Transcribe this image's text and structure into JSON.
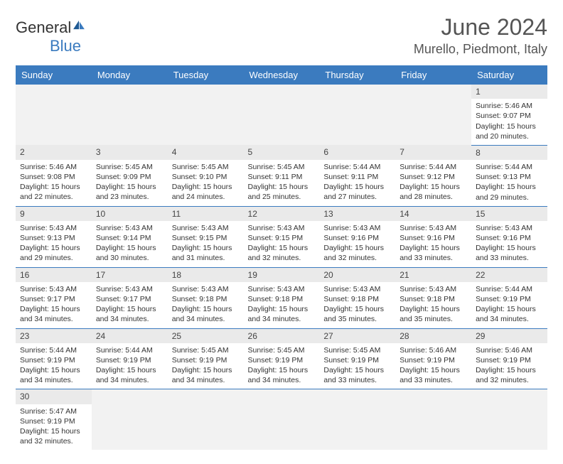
{
  "logo": {
    "text1": "General",
    "text2": "Blue"
  },
  "header": {
    "month_title": "June 2024",
    "location": "Murello, Piedmont, Italy"
  },
  "colors": {
    "header_bg": "#3b7bbf",
    "header_text": "#ffffff",
    "daynum_bg": "#eaeaea",
    "blank_bg": "#f2f2f2",
    "border": "#3b7bbf",
    "text": "#333333",
    "title_color": "#555555"
  },
  "day_names": [
    "Sunday",
    "Monday",
    "Tuesday",
    "Wednesday",
    "Thursday",
    "Friday",
    "Saturday"
  ],
  "weeks": [
    [
      null,
      null,
      null,
      null,
      null,
      null,
      {
        "n": "1",
        "sr": "5:46 AM",
        "ss": "9:07 PM",
        "dl": "15 hours and 20 minutes."
      }
    ],
    [
      {
        "n": "2",
        "sr": "5:46 AM",
        "ss": "9:08 PM",
        "dl": "15 hours and 22 minutes."
      },
      {
        "n": "3",
        "sr": "5:45 AM",
        "ss": "9:09 PM",
        "dl": "15 hours and 23 minutes."
      },
      {
        "n": "4",
        "sr": "5:45 AM",
        "ss": "9:10 PM",
        "dl": "15 hours and 24 minutes."
      },
      {
        "n": "5",
        "sr": "5:45 AM",
        "ss": "9:11 PM",
        "dl": "15 hours and 25 minutes."
      },
      {
        "n": "6",
        "sr": "5:44 AM",
        "ss": "9:11 PM",
        "dl": "15 hours and 27 minutes."
      },
      {
        "n": "7",
        "sr": "5:44 AM",
        "ss": "9:12 PM",
        "dl": "15 hours and 28 minutes."
      },
      {
        "n": "8",
        "sr": "5:44 AM",
        "ss": "9:13 PM",
        "dl": "15 hours and 29 minutes."
      }
    ],
    [
      {
        "n": "9",
        "sr": "5:43 AM",
        "ss": "9:13 PM",
        "dl": "15 hours and 29 minutes."
      },
      {
        "n": "10",
        "sr": "5:43 AM",
        "ss": "9:14 PM",
        "dl": "15 hours and 30 minutes."
      },
      {
        "n": "11",
        "sr": "5:43 AM",
        "ss": "9:15 PM",
        "dl": "15 hours and 31 minutes."
      },
      {
        "n": "12",
        "sr": "5:43 AM",
        "ss": "9:15 PM",
        "dl": "15 hours and 32 minutes."
      },
      {
        "n": "13",
        "sr": "5:43 AM",
        "ss": "9:16 PM",
        "dl": "15 hours and 32 minutes."
      },
      {
        "n": "14",
        "sr": "5:43 AM",
        "ss": "9:16 PM",
        "dl": "15 hours and 33 minutes."
      },
      {
        "n": "15",
        "sr": "5:43 AM",
        "ss": "9:16 PM",
        "dl": "15 hours and 33 minutes."
      }
    ],
    [
      {
        "n": "16",
        "sr": "5:43 AM",
        "ss": "9:17 PM",
        "dl": "15 hours and 34 minutes."
      },
      {
        "n": "17",
        "sr": "5:43 AM",
        "ss": "9:17 PM",
        "dl": "15 hours and 34 minutes."
      },
      {
        "n": "18",
        "sr": "5:43 AM",
        "ss": "9:18 PM",
        "dl": "15 hours and 34 minutes."
      },
      {
        "n": "19",
        "sr": "5:43 AM",
        "ss": "9:18 PM",
        "dl": "15 hours and 34 minutes."
      },
      {
        "n": "20",
        "sr": "5:43 AM",
        "ss": "9:18 PM",
        "dl": "15 hours and 35 minutes."
      },
      {
        "n": "21",
        "sr": "5:43 AM",
        "ss": "9:18 PM",
        "dl": "15 hours and 35 minutes."
      },
      {
        "n": "22",
        "sr": "5:44 AM",
        "ss": "9:19 PM",
        "dl": "15 hours and 34 minutes."
      }
    ],
    [
      {
        "n": "23",
        "sr": "5:44 AM",
        "ss": "9:19 PM",
        "dl": "15 hours and 34 minutes."
      },
      {
        "n": "24",
        "sr": "5:44 AM",
        "ss": "9:19 PM",
        "dl": "15 hours and 34 minutes."
      },
      {
        "n": "25",
        "sr": "5:45 AM",
        "ss": "9:19 PM",
        "dl": "15 hours and 34 minutes."
      },
      {
        "n": "26",
        "sr": "5:45 AM",
        "ss": "9:19 PM",
        "dl": "15 hours and 34 minutes."
      },
      {
        "n": "27",
        "sr": "5:45 AM",
        "ss": "9:19 PM",
        "dl": "15 hours and 33 minutes."
      },
      {
        "n": "28",
        "sr": "5:46 AM",
        "ss": "9:19 PM",
        "dl": "15 hours and 33 minutes."
      },
      {
        "n": "29",
        "sr": "5:46 AM",
        "ss": "9:19 PM",
        "dl": "15 hours and 32 minutes."
      }
    ],
    [
      {
        "n": "30",
        "sr": "5:47 AM",
        "ss": "9:19 PM",
        "dl": "15 hours and 32 minutes."
      },
      null,
      null,
      null,
      null,
      null,
      null
    ]
  ],
  "labels": {
    "sunrise": "Sunrise:",
    "sunset": "Sunset:",
    "daylight": "Daylight:"
  }
}
